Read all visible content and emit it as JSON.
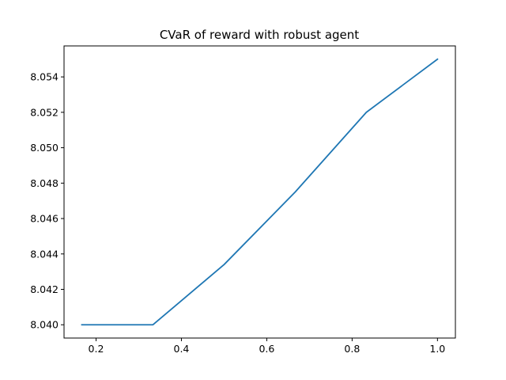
{
  "chart_data": {
    "type": "line",
    "title": "CVaR of reward with robust agent",
    "xlabel": "",
    "ylabel": "",
    "xlim": [
      0.125,
      1.042
    ],
    "ylim": [
      8.03925,
      8.05575
    ],
    "xticks": [
      0.2,
      0.4,
      0.6,
      0.8,
      1.0
    ],
    "xtick_labels": [
      "0.2",
      "0.4",
      "0.6",
      "0.8",
      "1.0"
    ],
    "yticks": [
      8.04,
      8.042,
      8.044,
      8.046,
      8.048,
      8.05,
      8.052,
      8.054
    ],
    "ytick_labels": [
      "8.040",
      "8.042",
      "8.044",
      "8.046",
      "8.048",
      "8.050",
      "8.052",
      "8.054"
    ],
    "grid": false,
    "series": [
      {
        "color": "#1f77b4",
        "x": [
          0.1667,
          0.3333,
          0.5,
          0.6667,
          0.8333,
          1.0
        ],
        "values": [
          8.04,
          8.04,
          8.0434,
          8.0475,
          8.052,
          8.055
        ]
      }
    ]
  }
}
